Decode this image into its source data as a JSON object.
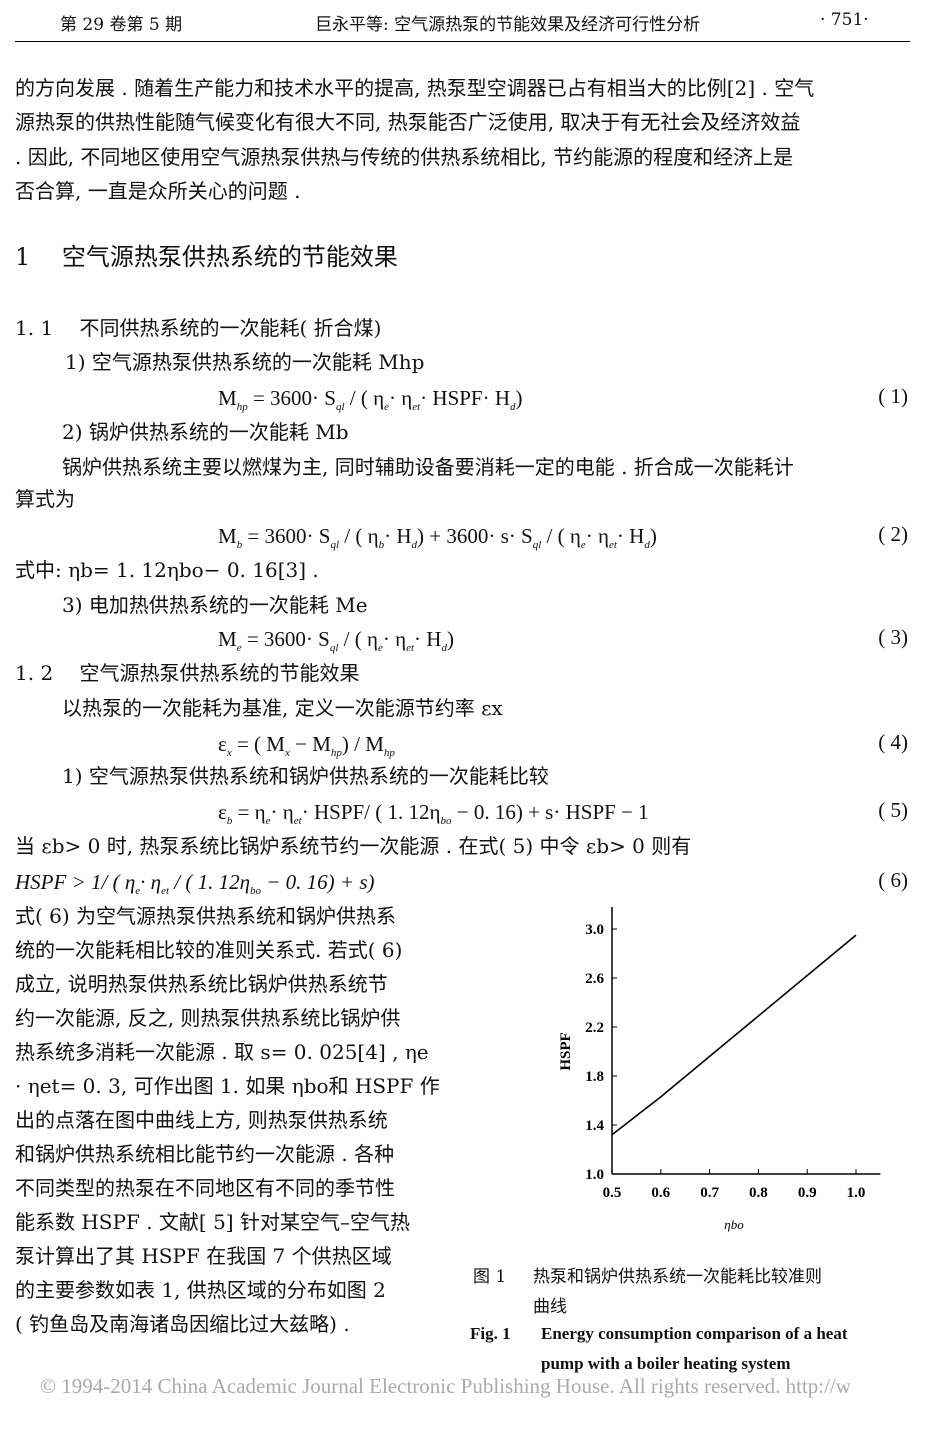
{
  "header": {
    "left": "第 29 卷第 5 期",
    "center": "巨永平等: 空气源热泵的节能效果及经济可行性分析",
    "page": "· 751·"
  },
  "body": {
    "intro": [
      "的方向发展 . 随着生产能力和技术水平的提高, 热泵型空调器已占有相当大的比例[2] . 空气",
      "源热泵的供热性能随气候变化有很大不同, 热泵能否广泛使用, 取决于有无社会及经济效益",
      ". 因此, 不同地区使用空气源热泵供热与传统的供热系统相比, 节约能源的程度和经济上是",
      "否合算, 一直是众所关心的问题 ."
    ],
    "section1": "1　 空气源热泵供热系统的节能效果",
    "sub11": "1. 1　 不同供热系统的一次能耗( 折合煤)",
    "item1": "1)  空气源热泵供热系统的一次能耗 Mhp",
    "item2": "2)  锅炉供热系统的一次能耗 Mb",
    "para2a": "锅炉供热系统主要以燃煤为主, 同时辅助设备要消耗一定的电能 . 折合成一次能耗计",
    "para2b": "算式为",
    "note2": "式中: ηb= 1. 12ηbo− 0. 16[3] .",
    "item3": "3)  电加热供热系统的一次能耗 Me",
    "sub12": "1. 2　 空气源热泵供热系统的节能效果",
    "para12": "以热泵的一次能耗为基准, 定义一次能源节约率 εx",
    "item4": "1)  空气源热泵供热系统和锅炉供热系统的一次能耗比较",
    "para5": "当 εb> 0 时, 热泵系统比锅炉系统节约一次能源 . 在式( 5) 中令 εb> 0 则有",
    "column": [
      "式( 6) 为空气源热泵供热系统和锅炉供热系",
      "统的一次能耗相比较的准则关系式. 若式( 6)",
      "成立, 说明热泵供热系统比锅炉供热系统节",
      "约一次能源, 反之, 则热泵供热系统比锅炉供",
      "热系统多消耗一次能源 . 取 s= 0. 025[4] , ηe",
      "· ηet= 0. 3, 可作出图 1. 如果 ηbo和 HSPF 作",
      "出的点落在图中曲线上方, 则热泵供热系统",
      "和锅炉供热系统相比能节约一次能源 . 各种",
      "不同类型的热泵在不同地区有不同的季节性",
      "能系数 HSPF . 文献[ 5] 针对某空气–空气热",
      "泵计算出了其 HSPF 在我国 7 个供热区域",
      "的主要参数如表 1, 供热区域的分布如图 2",
      "( 钓鱼岛及南海诸岛因缩比过大兹略) ."
    ]
  },
  "equations": [
    {
      "no": "( 1)",
      "parts": [
        [
          "M",
          ""
        ],
        [
          "hp",
          1
        ],
        [
          " = 3600·  S",
          ""
        ],
        [
          "ql",
          1
        ],
        [
          " / ( η",
          ""
        ],
        [
          "e",
          1
        ],
        [
          "·  η",
          ""
        ],
        [
          "et",
          1
        ],
        [
          "·  HSPF·  H",
          ""
        ],
        [
          "d",
          1
        ],
        [
          ")",
          ""
        ]
      ]
    },
    {
      "no": "( 2)",
      "parts": [
        [
          "M",
          ""
        ],
        [
          "b",
          1
        ],
        [
          " =  3600·  S",
          ""
        ],
        [
          "ql",
          1
        ],
        [
          " / ( η",
          ""
        ],
        [
          "b",
          1
        ],
        [
          "·  H",
          ""
        ],
        [
          "d",
          1
        ],
        [
          ") + 3600·  s·  S",
          ""
        ],
        [
          "ql",
          1
        ],
        [
          " / ( η",
          ""
        ],
        [
          "e",
          1
        ],
        [
          "·  η",
          ""
        ],
        [
          "et",
          1
        ],
        [
          "·  H",
          ""
        ],
        [
          "d",
          1
        ],
        [
          ")",
          ""
        ]
      ]
    },
    {
      "no": "( 3)",
      "parts": [
        [
          "M",
          ""
        ],
        [
          "e",
          1
        ],
        [
          " = 3600·  S",
          ""
        ],
        [
          "ql",
          1
        ],
        [
          " / ( η",
          ""
        ],
        [
          "e",
          1
        ],
        [
          "·  η",
          ""
        ],
        [
          "et",
          1
        ],
        [
          "·  H",
          ""
        ],
        [
          "d",
          1
        ],
        [
          ")",
          ""
        ]
      ]
    },
    {
      "no": "( 4)",
      "parts": [
        [
          "ε",
          ""
        ],
        [
          "x",
          1
        ],
        [
          " = ( M",
          ""
        ],
        [
          "x",
          1
        ],
        [
          " −  M",
          ""
        ],
        [
          "hp",
          1
        ],
        [
          ") / M",
          ""
        ],
        [
          "hp",
          1
        ]
      ]
    },
    {
      "no": "( 5)",
      "parts": [
        [
          "ε",
          ""
        ],
        [
          "b",
          1
        ],
        [
          " = η",
          ""
        ],
        [
          "e",
          1
        ],
        [
          "·  η",
          ""
        ],
        [
          "et",
          1
        ],
        [
          "·  HSPF/ ( 1. 12η",
          ""
        ],
        [
          "bo",
          1
        ],
        [
          " −  0. 16) + s·  HSPF −  1",
          ""
        ]
      ]
    },
    {
      "no": "( 6)",
      "parts": [
        [
          "HSPF > 1/ ( η",
          ""
        ],
        [
          "e",
          1
        ],
        [
          "·  η",
          ""
        ],
        [
          "et",
          1
        ],
        [
          " / ( 1. 12η",
          ""
        ],
        [
          "bo",
          1
        ],
        [
          " −  0. 16) + s)",
          ""
        ]
      ]
    }
  ],
  "figure": {
    "caption_cn_label": "图 1",
    "caption_cn": "热泵和锅炉供热系统一次能耗比较准则",
    "caption_cn_2": "曲线",
    "caption_en_label": "Fig. 1",
    "caption_en": "Energy consumption comparison of a heat",
    "caption_en_2": "pump with a boiler heating system"
  },
  "chart_data": {
    "type": "line",
    "xlabel": "ηbo",
    "ylabel": "HSPF",
    "xlim": [
      0.5,
      1.05
    ],
    "ylim": [
      1.0,
      3.2
    ],
    "xticks": [
      "0.5",
      "0.6",
      "0.7",
      "0.8",
      "0.9",
      "1.0"
    ],
    "yticks": [
      "1.0",
      "1.4",
      "1.8",
      "2.2",
      "2.6",
      "3.0"
    ],
    "series": [
      {
        "x": [
          0.5,
          0.6,
          0.7,
          0.8,
          0.9,
          1.0
        ],
        "y": [
          1.32,
          1.63,
          1.96,
          2.29,
          2.62,
          2.95
        ]
      }
    ],
    "grid": false
  },
  "footer": "© 1994-2014 China Academic Journal Electronic Publishing House. All rights reserved.    http://w"
}
